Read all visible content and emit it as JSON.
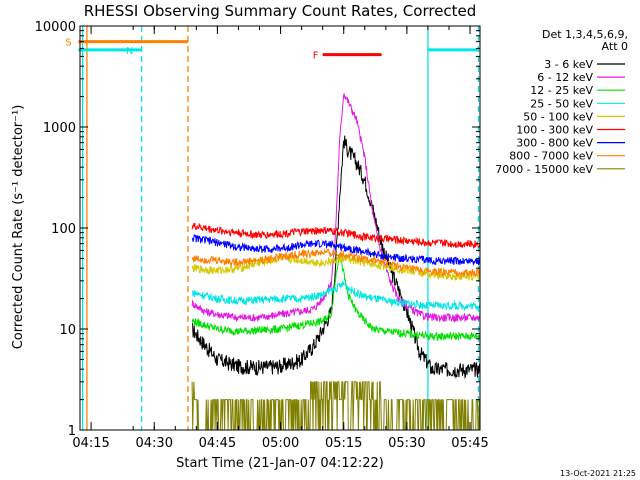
{
  "chart_data": {
    "type": "line",
    "title": "RHESSI Observing Summary Count Rates, Corrected",
    "xlabel": "Start Time (21-Jan-07 04:12:22)",
    "ylabel": "Corrected Count Rate (s⁻¹ detector⁻¹)",
    "y_scale": "log",
    "ylim": [
      1,
      10000
    ],
    "xlim_minutes_after_0412": [
      0,
      95
    ],
    "x_ticks": [
      "04:15",
      "04:30",
      "04:45",
      "05:00",
      "05:15",
      "05:30",
      "05:45"
    ],
    "y_ticks": [
      "1",
      "10",
      "100",
      "1000",
      "10000"
    ],
    "legend_header": [
      "Det 1,3,4,5,6,9,",
      "Att 0"
    ],
    "legend_position": "top-right outside plot",
    "footer_date": "13-Oct-2021 21:25",
    "series": [
      {
        "name": "3 - 6 keV",
        "color": "#000000",
        "x": [
          "04:39",
          "04:42",
          "04:45",
          "04:50",
          "04:55",
          "05:00",
          "05:05",
          "05:08",
          "05:10",
          "05:12",
          "05:13",
          "05:14",
          "05:15",
          "05:16",
          "05:18",
          "05:20",
          "05:22",
          "05:24",
          "05:26",
          "05:28",
          "05:30",
          "05:33",
          "05:36",
          "05:42",
          "05:48"
        ],
        "values": [
          10,
          7,
          5,
          4.3,
          4.2,
          4.3,
          5,
          7,
          10,
          15,
          40,
          200,
          750,
          600,
          450,
          300,
          150,
          70,
          40,
          25,
          15,
          6,
          4,
          4,
          4
        ]
      },
      {
        "name": "6 - 12 keV",
        "color": "#e31ae3",
        "x": [
          "04:39",
          "04:42",
          "04:45",
          "04:50",
          "04:55",
          "05:00",
          "05:05",
          "05:08",
          "05:10",
          "05:12",
          "05:13",
          "05:14",
          "05:15",
          "05:16",
          "05:18",
          "05:20",
          "05:22",
          "05:24",
          "05:26",
          "05:28",
          "05:30",
          "05:33",
          "05:36",
          "05:42",
          "05:48"
        ],
        "values": [
          18,
          15,
          14,
          13,
          13,
          14,
          15,
          16,
          20,
          28,
          80,
          700,
          2200,
          1800,
          1200,
          500,
          130,
          55,
          30,
          20,
          17,
          14,
          13,
          13,
          13
        ]
      },
      {
        "name": "12 - 25 keV",
        "color": "#00e000",
        "x": [
          "04:39",
          "04:45",
          "04:50",
          "05:00",
          "05:05",
          "05:10",
          "05:12",
          "05:13",
          "05:14",
          "05:15",
          "05:16",
          "05:18",
          "05:20",
          "05:22",
          "05:25",
          "05:30",
          "05:35",
          "05:42",
          "05:48"
        ],
        "values": [
          12,
          10,
          9.5,
          10,
          11,
          12,
          14,
          30,
          60,
          35,
          22,
          15,
          12,
          10,
          9.5,
          9,
          8.5,
          8.5,
          8.5
        ]
      },
      {
        "name": "25 - 50 keV",
        "color": "#00e5e5",
        "x": [
          "04:39",
          "04:45",
          "04:50",
          "05:00",
          "05:05",
          "05:10",
          "05:13",
          "05:15",
          "05:17",
          "05:20",
          "05:25",
          "05:30",
          "05:35",
          "05:42",
          "05:48"
        ],
        "values": [
          23,
          20,
          19,
          20,
          20,
          22,
          25,
          28,
          24,
          21,
          19,
          18,
          17,
          17,
          17
        ]
      },
      {
        "name": "50 - 100 keV",
        "color": "#d6c800",
        "x": [
          "04:39",
          "04:45",
          "04:50",
          "04:55",
          "05:00",
          "05:05",
          "05:10",
          "05:15",
          "05:20",
          "05:25",
          "05:30",
          "05:35",
          "05:42",
          "05:48"
        ],
        "values": [
          40,
          38,
          40,
          45,
          50,
          48,
          45,
          50,
          45,
          42,
          38,
          35,
          33,
          33
        ]
      },
      {
        "name": "100 - 300 keV",
        "color": "#ff0000",
        "x": [
          "04:39",
          "04:45",
          "04:50",
          "04:55",
          "05:00",
          "05:05",
          "05:10",
          "05:15",
          "05:20",
          "05:25",
          "05:30",
          "05:35",
          "05:42",
          "05:48"
        ],
        "values": [
          105,
          95,
          90,
          85,
          88,
          92,
          95,
          90,
          82,
          78,
          75,
          72,
          70,
          70
        ]
      },
      {
        "name": "300 - 800 keV",
        "color": "#0000ff",
        "x": [
          "04:39",
          "04:45",
          "04:50",
          "04:55",
          "05:00",
          "05:05",
          "05:10",
          "05:15",
          "05:20",
          "05:25",
          "05:30",
          "05:35",
          "05:42",
          "05:48"
        ],
        "values": [
          80,
          72,
          65,
          62,
          63,
          68,
          70,
          65,
          58,
          52,
          50,
          48,
          47,
          47
        ]
      },
      {
        "name": "800 - 7000 keV",
        "color": "#ff8000",
        "x": [
          "04:39",
          "04:45",
          "04:50",
          "04:55",
          "05:00",
          "05:05",
          "05:10",
          "05:15",
          "05:20",
          "05:25",
          "05:30",
          "05:35",
          "05:42",
          "05:48"
        ],
        "values": [
          50,
          48,
          46,
          48,
          52,
          55,
          57,
          55,
          50,
          45,
          40,
          37,
          36,
          36
        ]
      },
      {
        "name": "7000 - 15000 keV",
        "color": "#808000",
        "x": [
          "04:39",
          "05:48"
        ],
        "values": [
          2,
          2
        ]
      }
    ],
    "annotations": [
      {
        "label": "S",
        "color": "#ff8000",
        "x_start": "04:12",
        "x_end": "04:38",
        "y": 7000
      },
      {
        "label": "N",
        "color": "#00e5e5",
        "x_start": "04:12",
        "x_end": "04:27",
        "y": 5800
      },
      {
        "label": "F",
        "color": "#ff0000",
        "x_start": "05:10",
        "x_end": "05:24",
        "y": 5200
      },
      {
        "label": "",
        "color": "#00e5e5",
        "x_start": "05:35",
        "x_end": "05:47",
        "y": 5800
      }
    ],
    "vertical_markers": [
      {
        "time": "04:13",
        "color": "#00e5e5",
        "style": "solid"
      },
      {
        "time": "04:14",
        "color": "#ff8000",
        "style": "solid"
      },
      {
        "time": "04:27",
        "color": "#00e5e5",
        "style": "dashed"
      },
      {
        "time": "04:38",
        "color": "#ff8000",
        "style": "dashed"
      },
      {
        "time": "05:35",
        "color": "#00e5e5",
        "style": "solid"
      },
      {
        "time": "05:47",
        "color": "#00e5e5",
        "style": "dashed"
      }
    ]
  }
}
